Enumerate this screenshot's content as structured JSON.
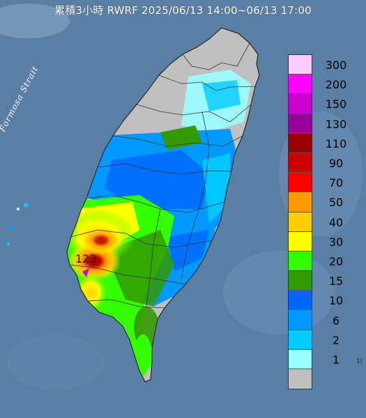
{
  "title": "累積3小時 RWRF 2025/06/13 14:00~06/13 17:00",
  "strait_label": "Formosa Strait",
  "peak_value": "123",
  "edge_text": "1(",
  "legend": [
    {
      "label": "300",
      "color": "#ffccff"
    },
    {
      "label": "200",
      "color": "#ff00ff"
    },
    {
      "label": "150",
      "color": "#cc00cc"
    },
    {
      "label": "130",
      "color": "#990099"
    },
    {
      "label": "110",
      "color": "#990000"
    },
    {
      "label": "90",
      "color": "#cc0000"
    },
    {
      "label": "70",
      "color": "#ff0000"
    },
    {
      "label": "50",
      "color": "#ff9900"
    },
    {
      "label": "40",
      "color": "#ffcc00"
    },
    {
      "label": "30",
      "color": "#ffff00"
    },
    {
      "label": "20",
      "color": "#33ff00"
    },
    {
      "label": "15",
      "color": "#339900"
    },
    {
      "label": "10",
      "color": "#0066ff"
    },
    {
      "label": "6",
      "color": "#0099ff"
    },
    {
      "label": "2",
      "color": "#00ccff"
    },
    {
      "label": "1",
      "color": "#99ffff"
    },
    {
      "label": "",
      "color": "#c0c0c0"
    }
  ],
  "colors": {
    "sea": "#5a7fa5",
    "land_no_rain": "#c0c0c0",
    "border": "#333333"
  }
}
